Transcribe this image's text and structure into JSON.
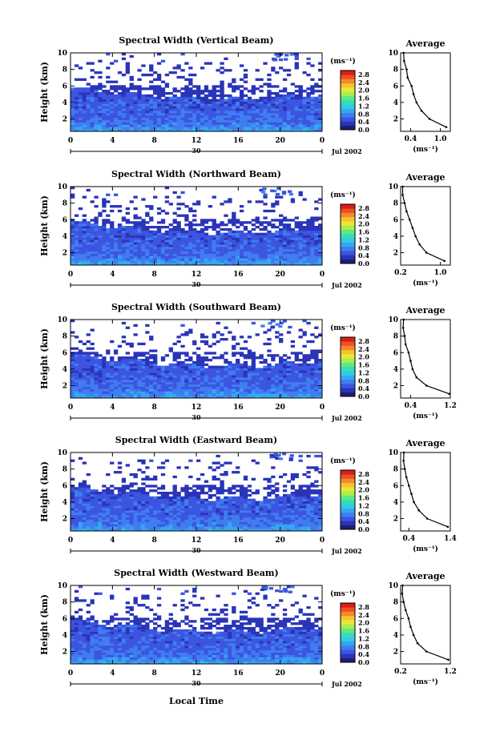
{
  "figure": {
    "xlabel": "Local Time",
    "date_suffix": "Jul 2002",
    "day_label": "30",
    "ylabel": "Height (km)",
    "units": "(ms⁻¹)",
    "avg_title": "Average",
    "avg_xlabel": "(ms⁻¹)"
  },
  "colorbar": {
    "ticks": [
      "0.0",
      "0.4",
      "0.8",
      "1.2",
      "1.6",
      "2.0",
      "2.4",
      "2.8"
    ],
    "colors": [
      "#1d1f6e",
      "#2a34b8",
      "#3c55e0",
      "#3f7df0",
      "#36a6f2",
      "#2fcce4",
      "#38dcb4",
      "#5fe884",
      "#a8ee4f",
      "#e6e83a",
      "#f6c22f",
      "#f48a29",
      "#ef4f22",
      "#d91c1c"
    ],
    "range": [
      0,
      3.0
    ]
  },
  "chart_data": [
    {
      "type": "heatmap",
      "title": "Spectral Width (Vertical Beam)",
      "x_ticks": [
        "0",
        "4",
        "8",
        "12",
        "16",
        "20",
        "0"
      ],
      "y_ticks": [
        "2",
        "4",
        "6",
        "8",
        "10"
      ],
      "xlim": [
        0,
        24
      ],
      "ylim": [
        0.5,
        10
      ],
      "profile": {
        "title": "Average",
        "xlabel": "(ms⁻¹)",
        "x_ticks": [
          "0.4",
          "1.0"
        ],
        "xlim": [
          0.2,
          1.2
        ],
        "heights": [
          10,
          9,
          8,
          7,
          6,
          5,
          4,
          3,
          2,
          1
        ],
        "values": [
          0.26,
          0.27,
          0.32,
          0.34,
          0.42,
          0.46,
          0.52,
          0.62,
          0.78,
          1.12
        ]
      }
    },
    {
      "type": "heatmap",
      "title": "Spectral Width (Northward Beam)",
      "x_ticks": [
        "0",
        "4",
        "8",
        "12",
        "16",
        "20",
        "0"
      ],
      "y_ticks": [
        "2",
        "4",
        "6",
        "8",
        "10"
      ],
      "xlim": [
        0,
        24
      ],
      "ylim": [
        0.5,
        10
      ],
      "profile": {
        "title": "Average",
        "xlabel": "(ms⁻¹)",
        "x_ticks": [
          "0.2",
          "1.0"
        ],
        "xlim": [
          0.2,
          1.2
        ],
        "heights": [
          10,
          9,
          8,
          7,
          6,
          5,
          4,
          3,
          2,
          1
        ],
        "values": [
          0.24,
          0.24,
          0.28,
          0.32,
          0.38,
          0.44,
          0.5,
          0.58,
          0.72,
          1.08
        ]
      }
    },
    {
      "type": "heatmap",
      "title": "Spectral Width (Southward Beam)",
      "x_ticks": [
        "0",
        "4",
        "8",
        "12",
        "16",
        "20",
        "0"
      ],
      "y_ticks": [
        "2",
        "4",
        "6",
        "8",
        "10"
      ],
      "xlim": [
        0,
        24
      ],
      "ylim": [
        0.5,
        10
      ],
      "profile": {
        "title": "Average",
        "xlabel": "(ms⁻¹)",
        "x_ticks": [
          "0.4",
          "1.2"
        ],
        "xlim": [
          0.2,
          1.2
        ],
        "heights": [
          10,
          9,
          8,
          7,
          6,
          5,
          4,
          3,
          2,
          1
        ],
        "values": [
          0.26,
          0.25,
          0.28,
          0.3,
          0.36,
          0.4,
          0.44,
          0.52,
          0.72,
          1.18
        ]
      }
    },
    {
      "type": "heatmap",
      "title": "Spectral Width (Eastward Beam)",
      "x_ticks": [
        "0",
        "4",
        "8",
        "12",
        "16",
        "20",
        "0"
      ],
      "y_ticks": [
        "2",
        "4",
        "6",
        "8",
        "10"
      ],
      "xlim": [
        0,
        24
      ],
      "ylim": [
        0.5,
        10
      ],
      "profile": {
        "title": "Average",
        "xlabel": "(ms⁻¹)",
        "x_ticks": [
          "0.4",
          "1.4"
        ],
        "xlim": [
          0.2,
          1.4
        ],
        "heights": [
          10,
          9,
          8,
          7,
          6,
          5,
          4,
          3,
          2,
          1
        ],
        "values": [
          0.28,
          0.27,
          0.3,
          0.34,
          0.4,
          0.46,
          0.52,
          0.64,
          0.84,
          1.34
        ]
      }
    },
    {
      "type": "heatmap",
      "title": "Spectral Width (Westward Beam)",
      "x_ticks": [
        "0",
        "4",
        "8",
        "12",
        "16",
        "20",
        "0"
      ],
      "y_ticks": [
        "2",
        "4",
        "6",
        "8",
        "10"
      ],
      "xlim": [
        0,
        24
      ],
      "ylim": [
        0.5,
        10
      ],
      "profile": {
        "title": "Average",
        "xlabel": "(ms⁻¹)",
        "x_ticks": [
          "0.2",
          "1.2"
        ],
        "xlim": [
          0.2,
          1.2
        ],
        "heights": [
          10,
          9,
          8,
          7,
          6,
          5,
          4,
          3,
          2,
          1
        ],
        "values": [
          0.24,
          0.23,
          0.26,
          0.3,
          0.36,
          0.4,
          0.46,
          0.54,
          0.72,
          1.16
        ]
      }
    }
  ]
}
